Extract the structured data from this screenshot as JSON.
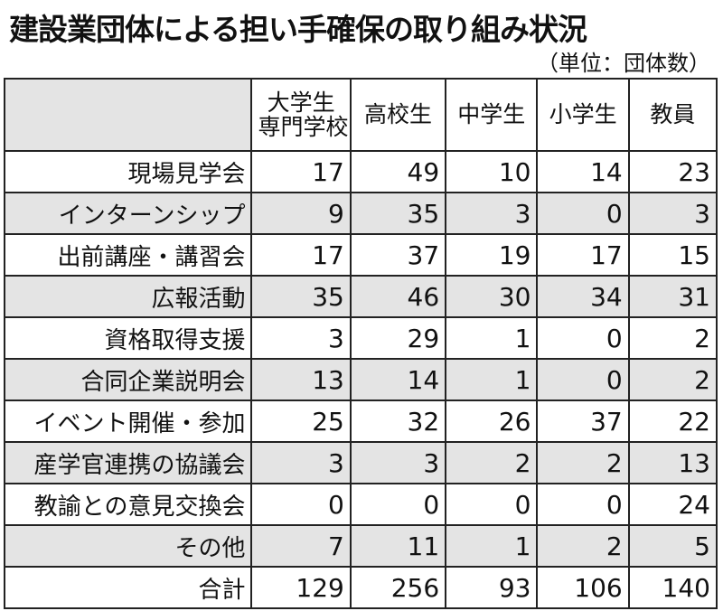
{
  "title": "建設業団体による担い手確保の取り組み状況",
  "unit_note": "（単位：団体数）",
  "chart_data": {
    "type": "table",
    "title": "建設業団体による担い手確保の取り組み状況",
    "unit": "（単位：団体数）",
    "columns": [
      {
        "line1": "大学生",
        "line2": "専門学校"
      },
      {
        "line1": "高校生",
        "line2": ""
      },
      {
        "line1": "中学生",
        "line2": ""
      },
      {
        "line1": "小学生",
        "line2": ""
      },
      {
        "line1": "教員",
        "line2": ""
      }
    ],
    "rows": [
      {
        "label": "現場見学会",
        "values": [
          17,
          49,
          10,
          14,
          23
        ]
      },
      {
        "label": "インターンシップ",
        "values": [
          9,
          35,
          3,
          0,
          3
        ]
      },
      {
        "label": "出前講座・講習会",
        "values": [
          17,
          37,
          19,
          17,
          15
        ]
      },
      {
        "label": "広報活動",
        "values": [
          35,
          46,
          30,
          34,
          31
        ]
      },
      {
        "label": "資格取得支援",
        "values": [
          3,
          29,
          1,
          0,
          2
        ]
      },
      {
        "label": "合同企業説明会",
        "values": [
          13,
          14,
          1,
          0,
          2
        ]
      },
      {
        "label": "イベント開催・参加",
        "values": [
          25,
          32,
          26,
          37,
          22
        ]
      },
      {
        "label": "産学官連携の協議会",
        "values": [
          3,
          3,
          2,
          2,
          13
        ]
      },
      {
        "label": "教諭との意見交換会",
        "values": [
          0,
          0,
          0,
          0,
          24
        ]
      },
      {
        "label": "その他",
        "values": [
          7,
          11,
          1,
          2,
          5
        ]
      },
      {
        "label": "合計",
        "values": [
          129,
          256,
          93,
          106,
          140
        ]
      }
    ],
    "shading": {
      "header_corner": "#e4e4e4",
      "alternate_row": "#e4e4e4",
      "border": "#222222"
    }
  }
}
